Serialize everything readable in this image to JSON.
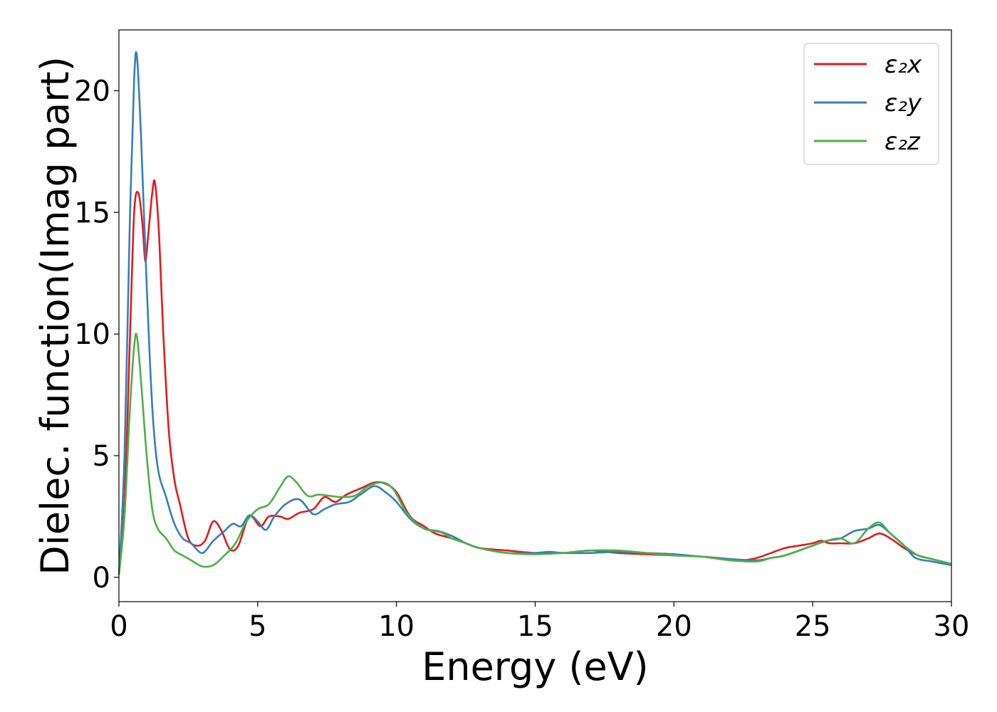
{
  "chart_data": {
    "type": "line",
    "title": "",
    "xlabel": "Energy (eV)",
    "ylabel": "Dielec. function(Imag part)",
    "xlim": [
      0,
      30
    ],
    "ylim": [
      -1,
      22.5
    ],
    "xticks": [
      0,
      5,
      10,
      15,
      20,
      25,
      30
    ],
    "yticks": [
      0,
      5,
      10,
      15,
      20
    ],
    "grid": false,
    "legend_position": "top-right",
    "series": [
      {
        "name": "ε₂x",
        "color": "#e41a1c",
        "points": [
          [
            0,
            0.1
          ],
          [
            0.2,
            3.0
          ],
          [
            0.4,
            10.0
          ],
          [
            0.55,
            15.0
          ],
          [
            0.7,
            15.8
          ],
          [
            0.85,
            14.5
          ],
          [
            0.95,
            13.0
          ],
          [
            1.05,
            14.0
          ],
          [
            1.2,
            15.8
          ],
          [
            1.3,
            16.2
          ],
          [
            1.45,
            14.0
          ],
          [
            1.6,
            10.0
          ],
          [
            1.8,
            6.0
          ],
          [
            2.0,
            4.0
          ],
          [
            2.2,
            3.0
          ],
          [
            2.5,
            1.6
          ],
          [
            2.8,
            1.3
          ],
          [
            3.1,
            1.5
          ],
          [
            3.4,
            2.3
          ],
          [
            3.7,
            1.9
          ],
          [
            4.0,
            1.15
          ],
          [
            4.3,
            1.3
          ],
          [
            4.7,
            2.5
          ],
          [
            5.1,
            2.1
          ],
          [
            5.4,
            2.5
          ],
          [
            5.8,
            2.5
          ],
          [
            6.1,
            2.4
          ],
          [
            6.5,
            2.65
          ],
          [
            7.0,
            2.8
          ],
          [
            7.4,
            3.3
          ],
          [
            7.8,
            3.1
          ],
          [
            8.2,
            3.4
          ],
          [
            8.8,
            3.7
          ],
          [
            9.2,
            3.9
          ],
          [
            9.6,
            3.85
          ],
          [
            10.0,
            3.5
          ],
          [
            10.5,
            2.5
          ],
          [
            11.0,
            2.1
          ],
          [
            11.4,
            1.8
          ],
          [
            12.0,
            1.6
          ],
          [
            12.5,
            1.4
          ],
          [
            13.0,
            1.2
          ],
          [
            14.0,
            1.1
          ],
          [
            15.0,
            1.0
          ],
          [
            16.0,
            1.0
          ],
          [
            17.0,
            1.1
          ],
          [
            18.0,
            1.0
          ],
          [
            19.0,
            0.95
          ],
          [
            20.0,
            0.9
          ],
          [
            21.0,
            0.85
          ],
          [
            22.0,
            0.75
          ],
          [
            22.5,
            0.7
          ],
          [
            23.0,
            0.8
          ],
          [
            23.5,
            1.0
          ],
          [
            24.0,
            1.2
          ],
          [
            24.5,
            1.3
          ],
          [
            25.0,
            1.4
          ],
          [
            25.3,
            1.5
          ],
          [
            25.6,
            1.4
          ],
          [
            26.0,
            1.4
          ],
          [
            26.5,
            1.4
          ],
          [
            27.0,
            1.6
          ],
          [
            27.4,
            1.8
          ],
          [
            27.8,
            1.6
          ],
          [
            28.3,
            1.2
          ],
          [
            28.8,
            0.9
          ],
          [
            29.3,
            0.75
          ],
          [
            30.0,
            0.55
          ]
        ]
      },
      {
        "name": "ε₂y",
        "color": "#377eb8",
        "points": [
          [
            0,
            0.1
          ],
          [
            0.2,
            5.0
          ],
          [
            0.4,
            15.0
          ],
          [
            0.55,
            20.5
          ],
          [
            0.65,
            21.4
          ],
          [
            0.8,
            18.0
          ],
          [
            1.0,
            12.0
          ],
          [
            1.2,
            7.0
          ],
          [
            1.4,
            4.5
          ],
          [
            1.7,
            3.3
          ],
          [
            2.0,
            2.2
          ],
          [
            2.3,
            1.6
          ],
          [
            2.6,
            1.4
          ],
          [
            3.0,
            1.0
          ],
          [
            3.4,
            1.5
          ],
          [
            3.8,
            1.9
          ],
          [
            4.1,
            2.2
          ],
          [
            4.4,
            2.1
          ],
          [
            4.7,
            2.55
          ],
          [
            5.0,
            2.3
          ],
          [
            5.3,
            1.95
          ],
          [
            5.6,
            2.5
          ],
          [
            6.0,
            3.0
          ],
          [
            6.5,
            3.2
          ],
          [
            7.0,
            2.6
          ],
          [
            7.4,
            2.8
          ],
          [
            7.8,
            3.0
          ],
          [
            8.3,
            3.1
          ],
          [
            8.7,
            3.4
          ],
          [
            9.2,
            3.75
          ],
          [
            9.6,
            3.5
          ],
          [
            10.0,
            3.1
          ],
          [
            10.5,
            2.4
          ],
          [
            11.0,
            2.0
          ],
          [
            11.5,
            1.9
          ],
          [
            12.0,
            1.7
          ],
          [
            12.5,
            1.4
          ],
          [
            13.0,
            1.2
          ],
          [
            14.0,
            1.0
          ],
          [
            15.0,
            1.0
          ],
          [
            15.5,
            1.05
          ],
          [
            16.0,
            1.0
          ],
          [
            17.0,
            1.0
          ],
          [
            18.0,
            1.05
          ],
          [
            19.0,
            1.0
          ],
          [
            20.0,
            0.95
          ],
          [
            21.0,
            0.85
          ],
          [
            22.0,
            0.75
          ],
          [
            23.0,
            0.7
          ],
          [
            23.5,
            0.8
          ],
          [
            24.0,
            0.9
          ],
          [
            25.0,
            1.3
          ],
          [
            25.5,
            1.5
          ],
          [
            26.0,
            1.6
          ],
          [
            26.5,
            1.9
          ],
          [
            27.0,
            2.0
          ],
          [
            27.4,
            2.15
          ],
          [
            27.8,
            1.8
          ],
          [
            28.3,
            1.3
          ],
          [
            28.7,
            0.8
          ],
          [
            29.3,
            0.65
          ],
          [
            30.0,
            0.5
          ]
        ]
      },
      {
        "name": "ε₂z",
        "color": "#4daf4a",
        "points": [
          [
            0,
            0.1
          ],
          [
            0.2,
            2.5
          ],
          [
            0.4,
            7.0
          ],
          [
            0.55,
            9.5
          ],
          [
            0.65,
            9.9
          ],
          [
            0.8,
            8.0
          ],
          [
            1.0,
            5.0
          ],
          [
            1.2,
            2.8
          ],
          [
            1.4,
            2.0
          ],
          [
            1.7,
            1.6
          ],
          [
            2.0,
            1.1
          ],
          [
            2.3,
            0.9
          ],
          [
            2.6,
            0.7
          ],
          [
            3.0,
            0.45
          ],
          [
            3.4,
            0.5
          ],
          [
            3.8,
            0.9
          ],
          [
            4.2,
            1.4
          ],
          [
            4.6,
            2.3
          ],
          [
            5.0,
            2.8
          ],
          [
            5.4,
            3.0
          ],
          [
            5.8,
            3.7
          ],
          [
            6.1,
            4.15
          ],
          [
            6.4,
            3.9
          ],
          [
            6.8,
            3.35
          ],
          [
            7.2,
            3.4
          ],
          [
            7.6,
            3.35
          ],
          [
            8.0,
            3.3
          ],
          [
            8.5,
            3.35
          ],
          [
            9.0,
            3.75
          ],
          [
            9.5,
            3.9
          ],
          [
            9.9,
            3.6
          ],
          [
            10.4,
            2.6
          ],
          [
            11.0,
            2.0
          ],
          [
            11.6,
            1.85
          ],
          [
            12.0,
            1.6
          ],
          [
            12.5,
            1.4
          ],
          [
            13.0,
            1.2
          ],
          [
            14.0,
            1.0
          ],
          [
            15.0,
            0.95
          ],
          [
            16.0,
            1.0
          ],
          [
            17.0,
            1.1
          ],
          [
            18.0,
            1.1
          ],
          [
            19.0,
            1.0
          ],
          [
            20.0,
            0.9
          ],
          [
            21.0,
            0.85
          ],
          [
            22.0,
            0.7
          ],
          [
            23.0,
            0.65
          ],
          [
            23.5,
            0.8
          ],
          [
            24.0,
            0.9
          ],
          [
            25.0,
            1.3
          ],
          [
            25.5,
            1.5
          ],
          [
            26.0,
            1.6
          ],
          [
            26.5,
            1.4
          ],
          [
            27.0,
            2.0
          ],
          [
            27.4,
            2.25
          ],
          [
            27.8,
            1.8
          ],
          [
            28.3,
            1.3
          ],
          [
            28.8,
            0.9
          ],
          [
            29.3,
            0.75
          ],
          [
            30.0,
            0.55
          ]
        ]
      }
    ]
  }
}
